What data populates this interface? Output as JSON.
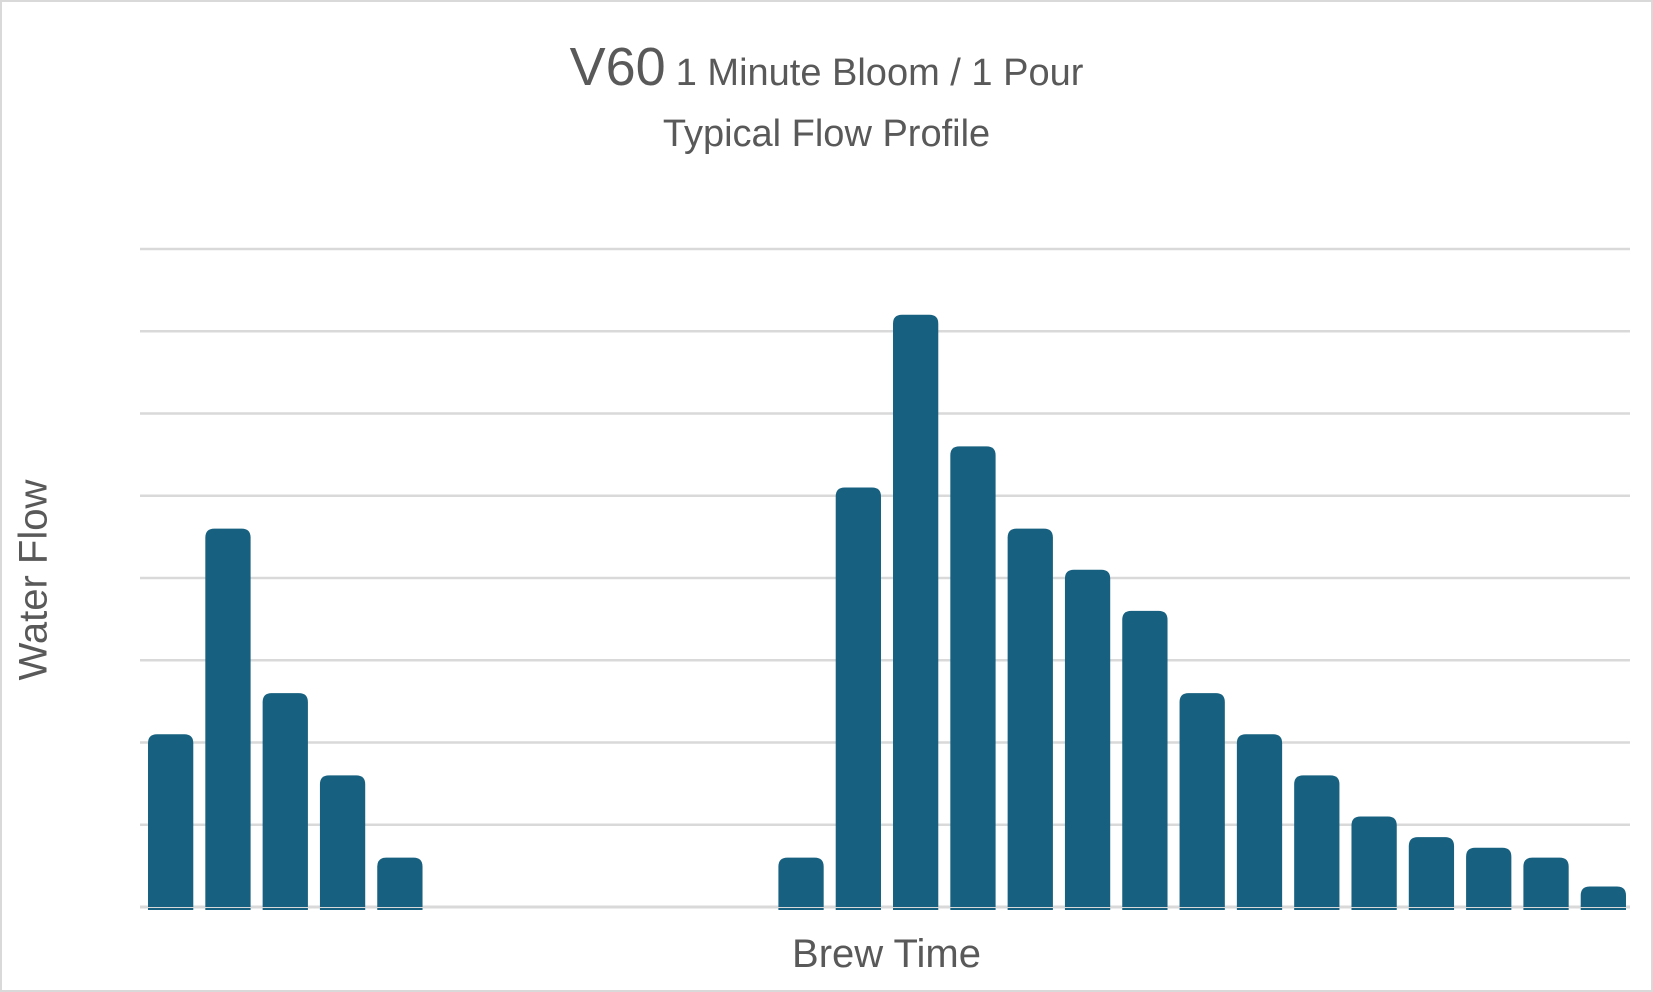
{
  "chart_data": {
    "type": "bar",
    "title": "V60",
    "title_suffix": "1 Minute Bloom / 1 Pour",
    "subtitle": "Typical Flow Profile",
    "xlabel": "Brew Time",
    "ylabel": "Water Flow",
    "ylim": [
      0,
      8
    ],
    "grid": true,
    "legend": "none",
    "bar_color": "#17607f",
    "slots": 26,
    "values": [
      2.1,
      4.6,
      2.6,
      1.6,
      0.6,
      null,
      null,
      null,
      null,
      null,
      null,
      0.6,
      5.1,
      7.2,
      5.6,
      4.6,
      4.1,
      3.6,
      2.6,
      2.1,
      1.6,
      1.1,
      0.85,
      0.72,
      0.6,
      0.25
    ]
  }
}
